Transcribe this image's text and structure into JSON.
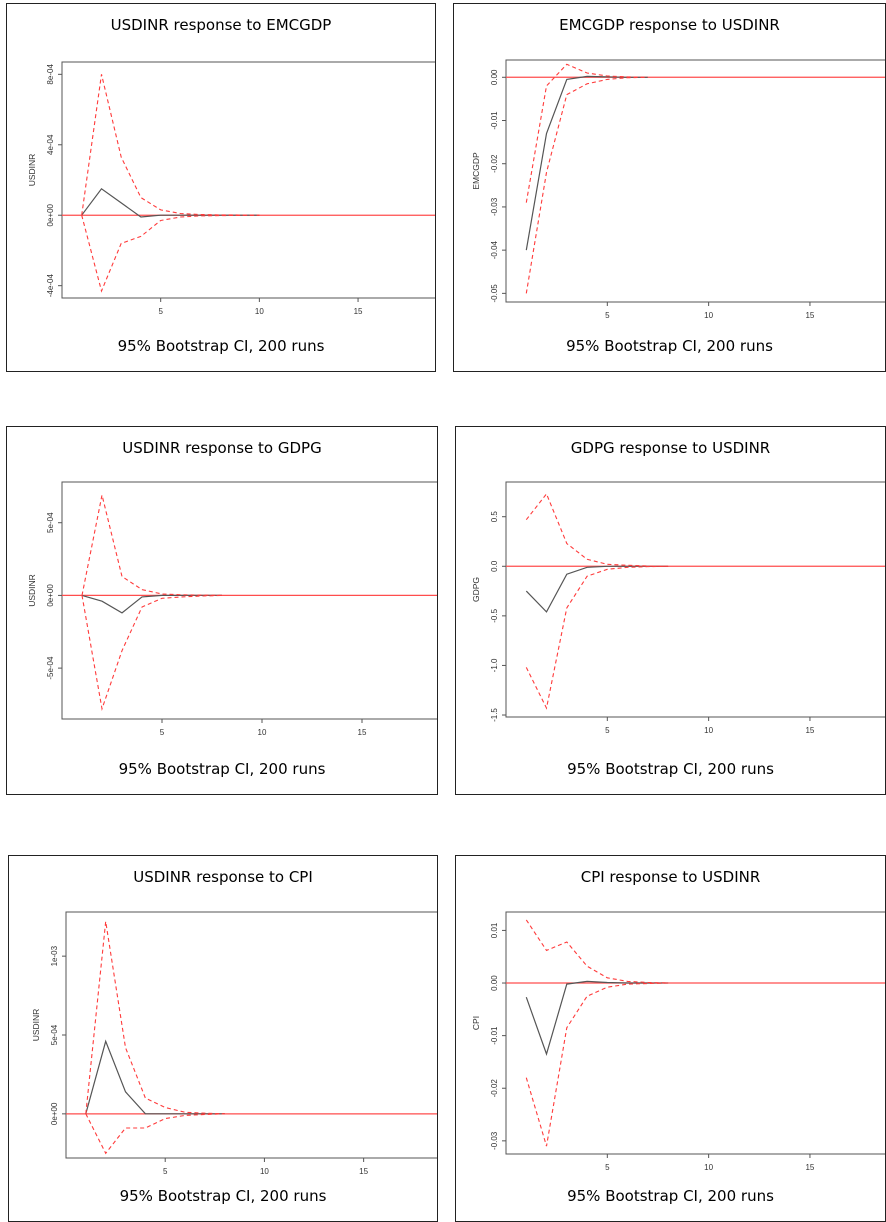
{
  "chart_data": [
    {
      "type": "line",
      "title": "USDINR response to EMCGDP",
      "caption": "95% Bootstrap CI, 200 runs",
      "xlabel": "",
      "ylabel": "USDINR",
      "xlim": [
        0,
        19
      ],
      "ylim": [
        -0.00047,
        0.00087
      ],
      "xticks": [
        5,
        10,
        15
      ],
      "yticks": [
        -0.0004,
        0,
        0.0004,
        0.0008
      ],
      "ytick_labels": [
        "-4e-04",
        "0e+00",
        "4e-04",
        "8e-04"
      ],
      "x": [
        1,
        2,
        3,
        4,
        5,
        6,
        7,
        8,
        9,
        10
      ],
      "series": [
        {
          "values": [
            0,
            0.00015,
            7e-05,
            -1e-05,
            0,
            0,
            0,
            0,
            0,
            0
          ],
          "color": "#555555",
          "style": "solid"
        },
        {
          "values": [
            0,
            0.0008,
            0.00033,
            0.0001,
            3e-05,
            1e-05,
            4e-06,
            2e-06,
            1e-06,
            0
          ],
          "color": "#ff3b3b",
          "style": "dashed"
        },
        {
          "values": [
            0,
            -0.00043,
            -0.00016,
            -0.00012,
            -3e-05,
            -1e-05,
            -4e-06,
            -2e-06,
            -1e-06,
            0
          ],
          "color": "#ff3b3b",
          "style": "dashed"
        }
      ],
      "zero_line_color": "#ff4d4d"
    },
    {
      "type": "line",
      "title": "EMCGDP response to USDINR",
      "caption": "95% Bootstrap CI, 200 runs",
      "xlabel": "",
      "ylabel": "EMCGDP",
      "xlim": [
        0,
        19
      ],
      "ylim": [
        -0.052,
        0.004
      ],
      "xticks": [
        5,
        10,
        15
      ],
      "yticks": [
        -0.05,
        -0.04,
        -0.03,
        -0.02,
        -0.01,
        0
      ],
      "ytick_labels": [
        "-0.05",
        "-0.04",
        "-0.03",
        "-0.02",
        "-0.01",
        "0.00"
      ],
      "x": [
        1,
        2,
        3,
        4,
        5,
        6,
        7
      ],
      "series": [
        {
          "values": [
            -0.04,
            -0.013,
            -0.0005,
            0.0002,
            0.0001,
            0,
            0
          ],
          "color": "#555555",
          "style": "solid"
        },
        {
          "values": [
            -0.029,
            -0.002,
            0.003,
            0.001,
            0.0003,
            0.0001,
            0
          ],
          "color": "#ff3b3b",
          "style": "dashed"
        },
        {
          "values": [
            -0.05,
            -0.022,
            -0.004,
            -0.0015,
            -0.0005,
            -0.0001,
            0
          ],
          "color": "#ff3b3b",
          "style": "dashed"
        }
      ],
      "zero_line_color": "#ff4d4d"
    },
    {
      "type": "line",
      "title": "USDINR response to GDPG",
      "caption": "95% Bootstrap CI, 200 runs",
      "xlabel": "",
      "ylabel": "USDINR",
      "xlim": [
        0,
        19
      ],
      "ylim": [
        -0.00085,
        0.00078
      ],
      "xticks": [
        5,
        10,
        15
      ],
      "yticks": [
        -0.0005,
        0,
        0.0005
      ],
      "ytick_labels": [
        "-5e-04",
        "0e+00",
        "5e-04"
      ],
      "x": [
        1,
        2,
        3,
        4,
        5,
        6,
        7,
        8
      ],
      "series": [
        {
          "values": [
            0,
            -4e-05,
            -0.00012,
            -1e-05,
            0,
            0,
            0,
            0
          ],
          "color": "#555555",
          "style": "solid"
        },
        {
          "values": [
            0,
            0.00069,
            0.00013,
            4e-05,
            1e-05,
            4e-06,
            2e-06,
            0
          ],
          "color": "#ff3b3b",
          "style": "dashed"
        },
        {
          "values": [
            0,
            -0.00078,
            -0.00038,
            -8e-05,
            -2e-05,
            -1e-05,
            -4e-06,
            0
          ],
          "color": "#ff3b3b",
          "style": "dashed"
        }
      ],
      "zero_line_color": "#ff4d4d"
    },
    {
      "type": "line",
      "title": "GDPG response to USDINR",
      "caption": "95% Bootstrap CI, 200 runs",
      "xlabel": "",
      "ylabel": "GDPG",
      "xlim": [
        0,
        19
      ],
      "ylim": [
        -1.52,
        0.85
      ],
      "xticks": [
        5,
        10,
        15
      ],
      "yticks": [
        -1.5,
        -1.0,
        -0.5,
        0,
        0.5
      ],
      "ytick_labels": [
        "-1.5",
        "-1.0",
        "-0.5",
        "0.0",
        "0.5"
      ],
      "x": [
        1,
        2,
        3,
        4,
        5,
        6,
        7,
        8
      ],
      "series": [
        {
          "values": [
            -0.25,
            -0.46,
            -0.08,
            -0.01,
            0,
            0,
            0,
            0
          ],
          "color": "#555555",
          "style": "solid"
        },
        {
          "values": [
            0.47,
            0.73,
            0.23,
            0.07,
            0.02,
            0.01,
            0.003,
            0
          ],
          "color": "#ff3b3b",
          "style": "dashed"
        },
        {
          "values": [
            -1.02,
            -1.43,
            -0.42,
            -0.1,
            -0.03,
            -0.01,
            -0.003,
            0
          ],
          "color": "#ff3b3b",
          "style": "dashed"
        }
      ],
      "zero_line_color": "#ff4d4d"
    },
    {
      "type": "line",
      "title": "USDINR response to CPI",
      "caption": "95% Bootstrap CI, 200 runs",
      "xlabel": "",
      "ylabel": "USDINR",
      "xlim": [
        0,
        19
      ],
      "ylim": [
        -0.00028,
        0.00128
      ],
      "xticks": [
        5,
        10,
        15
      ],
      "yticks": [
        0,
        0.0005,
        0.001
      ],
      "ytick_labels": [
        "0e+00",
        "5e-04",
        "1e-03"
      ],
      "x": [
        1,
        2,
        3,
        4,
        5,
        6,
        7,
        8
      ],
      "series": [
        {
          "values": [
            0,
            0.00046,
            0.00014,
            0,
            0,
            0,
            0,
            0
          ],
          "color": "#555555",
          "style": "solid"
        },
        {
          "values": [
            0,
            0.00122,
            0.00042,
            0.0001,
            4e-05,
            1e-05,
            4e-06,
            0
          ],
          "color": "#ff3b3b",
          "style": "dashed"
        },
        {
          "values": [
            0,
            -0.00025,
            -9e-05,
            -9e-05,
            -3e-05,
            -1e-05,
            -4e-06,
            0
          ],
          "color": "#ff3b3b",
          "style": "dashed"
        }
      ],
      "zero_line_color": "#ff4d4d"
    },
    {
      "type": "line",
      "title": "CPI response to USDINR",
      "caption": "95% Bootstrap CI, 200 runs",
      "xlabel": "",
      "ylabel": "CPI",
      "xlim": [
        0,
        19
      ],
      "ylim": [
        -0.0325,
        0.0135
      ],
      "xticks": [
        5,
        10,
        15
      ],
      "yticks": [
        -0.03,
        -0.02,
        -0.01,
        0,
        0.01
      ],
      "ytick_labels": [
        "-0.03",
        "-0.02",
        "-0.01",
        "0.00",
        "0.01"
      ],
      "x": [
        1,
        2,
        3,
        4,
        5,
        6,
        7,
        8
      ],
      "series": [
        {
          "values": [
            -0.0027,
            -0.0135,
            -0.0002,
            0.0003,
            0.0001,
            0,
            0,
            0
          ],
          "color": "#555555",
          "style": "solid"
        },
        {
          "values": [
            0.012,
            0.0062,
            0.0078,
            0.0032,
            0.001,
            0.0003,
            0.0001,
            0
          ],
          "color": "#ff3b3b",
          "style": "dashed"
        },
        {
          "values": [
            -0.018,
            -0.031,
            -0.0085,
            -0.0025,
            -0.0008,
            -0.0002,
            -0.0001,
            0
          ],
          "color": "#ff3b3b",
          "style": "dashed"
        }
      ],
      "zero_line_color": "#ff4d4d"
    }
  ]
}
